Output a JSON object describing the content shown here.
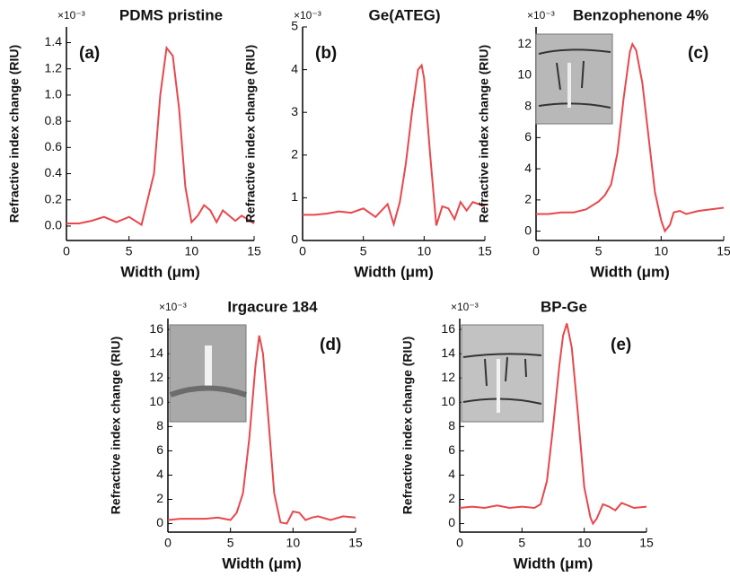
{
  "chart_data": [
    {
      "type": "line",
      "panel_label": "(a)",
      "title": "PDMS pristine",
      "y_multiplier": "×10⁻³",
      "xlabel": "Width (μm)",
      "ylabel": "Refractive index change (RIU)",
      "xlim": [
        0,
        15
      ],
      "xticks": [
        0,
        5,
        10,
        15
      ],
      "ylim": [
        -0.11,
        1.52
      ],
      "yticks": [
        {
          "value": 0,
          "label": "0.0"
        },
        0.2,
        0.4,
        0.6,
        0.8,
        {
          "value": 1,
          "label": "1.0"
        },
        1.2,
        1.4
      ],
      "series": [
        {
          "color": "#e8474c",
          "x": [
            0,
            1,
            2,
            3,
            4,
            5,
            6,
            7,
            7.5,
            8,
            8.5,
            9,
            9.5,
            10,
            10.5,
            11,
            11.5,
            12,
            12.5,
            13,
            13.5,
            14,
            14.5,
            15
          ],
          "values": [
            0.02,
            0.02,
            0.04,
            0.07,
            0.03,
            0.07,
            0.01,
            0.4,
            1.0,
            1.36,
            1.3,
            0.9,
            0.3,
            0.03,
            0.08,
            0.16,
            0.12,
            0.03,
            0.12,
            0.08,
            0.04,
            0.08,
            0.05,
            0.02
          ]
        }
      ]
    },
    {
      "type": "line",
      "panel_label": "(b)",
      "title": "Ge(ATEG)",
      "y_multiplier": "×10⁻³",
      "xlabel": "Width (μm)",
      "ylabel": "Refractive index change (RIU)",
      "xlim": [
        0,
        15
      ],
      "xticks": [
        0,
        5,
        10,
        15
      ],
      "ylim": [
        0,
        5
      ],
      "yticks": [
        0,
        1,
        2,
        3,
        4,
        5
      ],
      "series": [
        {
          "color": "#e8474c",
          "x": [
            0,
            1,
            2,
            3,
            4,
            5,
            6,
            7,
            7.5,
            8,
            8.5,
            9,
            9.5,
            9.8,
            10,
            10.5,
            11,
            11.5,
            12,
            12.5,
            13,
            13.5,
            14,
            14.5,
            15
          ],
          "values": [
            0.6,
            0.6,
            0.63,
            0.68,
            0.65,
            0.75,
            0.55,
            0.85,
            0.38,
            0.9,
            1.8,
            3.0,
            4.0,
            4.1,
            3.8,
            2.0,
            0.35,
            0.8,
            0.75,
            0.5,
            0.9,
            0.7,
            0.9,
            0.85,
            0.8
          ]
        }
      ]
    },
    {
      "type": "line",
      "panel_label": "(c)",
      "title": "Benzophenone 4%",
      "y_multiplier": "×10⁻³",
      "xlabel": "Width (μm)",
      "ylabel": "Refractive index change (RIU)",
      "xlim": [
        0,
        15
      ],
      "xticks": [
        0,
        5,
        10,
        15
      ],
      "ylim": [
        -0.6,
        13.1
      ],
      "yticks": [
        0,
        2,
        4,
        6,
        8,
        10,
        12
      ],
      "series": [
        {
          "color": "#e8474c",
          "x": [
            0,
            1,
            2,
            3,
            4,
            5,
            5.5,
            6,
            6.5,
            7,
            7.5,
            7.7,
            8,
            8.5,
            9,
            9.5,
            10,
            10.3,
            10.7,
            11,
            11.5,
            12,
            13,
            14,
            15
          ],
          "values": [
            1.1,
            1.1,
            1.2,
            1.2,
            1.4,
            1.9,
            2.3,
            3,
            5,
            8.5,
            11.5,
            12,
            11.6,
            9.5,
            6,
            2.5,
            0.7,
            0,
            0.4,
            1.2,
            1.3,
            1.1,
            1.3,
            1.4,
            1.5
          ]
        }
      ]
    },
    {
      "type": "line",
      "panel_label": "(d)",
      "title": "Irgacure 184",
      "y_multiplier": "×10⁻³",
      "xlabel": "Width (μm)",
      "ylabel": "Refractive index change (RIU)",
      "xlim": [
        0,
        15
      ],
      "xticks": [
        0,
        5,
        10,
        15
      ],
      "ylim": [
        -0.7,
        16.9
      ],
      "yticks": [
        0,
        2,
        4,
        6,
        8,
        10,
        12,
        14,
        16
      ],
      "series": [
        {
          "color": "#e8474c",
          "x": [
            0,
            1,
            2,
            3,
            4,
            5,
            5.5,
            6,
            6.5,
            7,
            7.3,
            7.6,
            8,
            8.5,
            9,
            9.5,
            10,
            10.5,
            11,
            11.5,
            12,
            13,
            14,
            15
          ],
          "values": [
            0.3,
            0.4,
            0.4,
            0.4,
            0.5,
            0.3,
            0.9,
            2.5,
            7,
            13,
            15.5,
            14,
            9,
            2.5,
            0.1,
            0,
            1,
            0.9,
            0.3,
            0.5,
            0.6,
            0.3,
            0.6,
            0.5
          ]
        }
      ]
    },
    {
      "type": "line",
      "panel_label": "(e)",
      "title": "BP-Ge",
      "y_multiplier": "×10⁻³",
      "xlabel": "Width (μm)",
      "ylabel": "Refractive index change (RIU)",
      "xlim": [
        0,
        15
      ],
      "xticks": [
        0,
        5,
        10,
        15
      ],
      "ylim": [
        -0.7,
        16.9
      ],
      "yticks": [
        0,
        2,
        4,
        6,
        8,
        10,
        12,
        14,
        16
      ],
      "series": [
        {
          "color": "#e8474c",
          "x": [
            0,
            1,
            2,
            3,
            4,
            5,
            6,
            6.5,
            7,
            7.5,
            8,
            8.3,
            8.6,
            9,
            9.5,
            10,
            10.5,
            10.7,
            11,
            11.5,
            12,
            12.5,
            13,
            14,
            15
          ],
          "values": [
            1.3,
            1.4,
            1.3,
            1.5,
            1.3,
            1.4,
            1.3,
            1.6,
            3.5,
            8,
            13,
            15.5,
            16.5,
            14.5,
            9,
            3,
            0.5,
            0,
            0.4,
            1.6,
            1.4,
            1.1,
            1.7,
            1.3,
            1.4
          ]
        }
      ]
    }
  ]
}
